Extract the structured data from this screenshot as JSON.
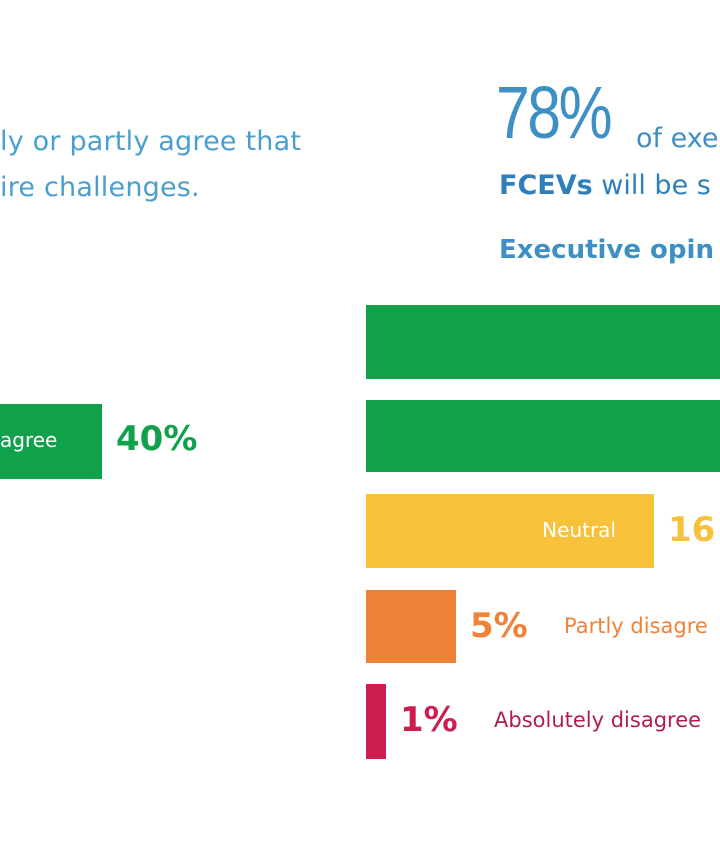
{
  "left_panel": {
    "text_line1": "ly or partly agree that",
    "text_line2": "ire challenges."
  },
  "right_panel": {
    "headline_pct": "78%",
    "headline_suffix": "of exe",
    "subline_bold": "FCEVs",
    "subline_rest": " will be s",
    "section_title": "Executive opin"
  },
  "chart_data": [
    {
      "type": "bar",
      "orientation": "horizontal",
      "categories": [
        "agree"
      ],
      "values": [
        40
      ],
      "data_labels": [
        "40%"
      ],
      "colors": [
        "#11a14b"
      ]
    },
    {
      "type": "bar",
      "orientation": "horizontal",
      "title": "Executive opin",
      "categories": [
        "",
        "",
        "Neutral",
        "Partly disagre",
        "Absolutely disagree"
      ],
      "values": [
        null,
        null,
        16,
        5,
        1
      ],
      "data_labels": [
        "",
        "",
        "16",
        "5%",
        "1%"
      ],
      "colors": [
        "#11a14b",
        "#11a14b",
        "#f7c13a",
        "#f08237",
        "#cc1f4f"
      ]
    }
  ]
}
